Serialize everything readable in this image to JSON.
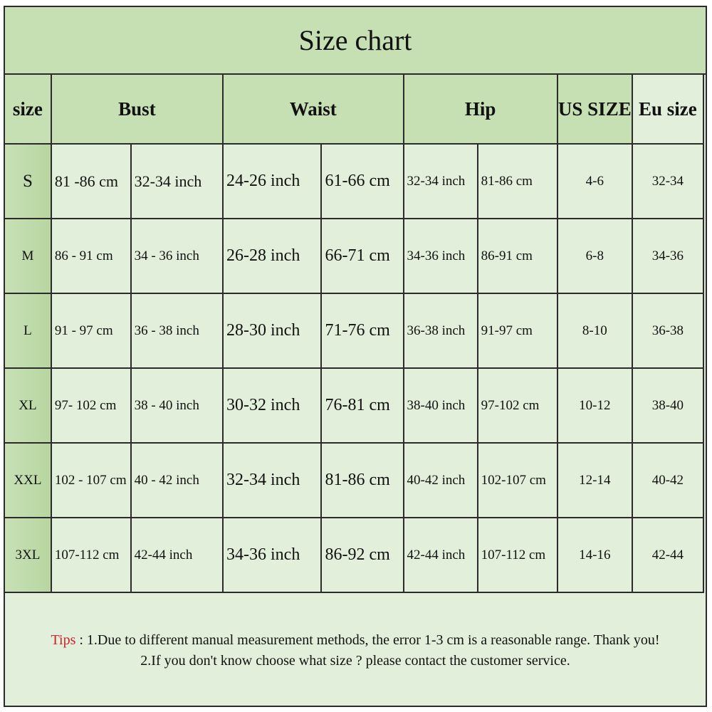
{
  "title": "Size chart",
  "headers": {
    "size": "size",
    "bust": "Bust",
    "waist": "Waist",
    "hip": "Hip",
    "us_size": "US SIZE",
    "eu_size": "Eu size"
  },
  "rows": [
    {
      "size": "S",
      "bust_cm": "81 -86 cm",
      "bust_in": "32-34 inch",
      "waist_in": "24-26 inch",
      "waist_cm": "61-66 cm",
      "hip_in": "32-34 inch",
      "hip_cm": "81-86 cm",
      "us": "4-6",
      "eu": "32-34"
    },
    {
      "size": "M",
      "bust_cm": "86 - 91 cm",
      "bust_in": "34 - 36 inch",
      "waist_in": "26-28 inch",
      "waist_cm": "66-71 cm",
      "hip_in": "34-36 inch",
      "hip_cm": "86-91 cm",
      "us": "6-8",
      "eu": "34-36"
    },
    {
      "size": "L",
      "bust_cm": "91 - 97 cm",
      "bust_in": "36 - 38 inch",
      "waist_in": "28-30 inch",
      "waist_cm": "71-76 cm",
      "hip_in": "36-38 inch",
      "hip_cm": "91-97 cm",
      "us": "8-10",
      "eu": "36-38"
    },
    {
      "size": "XL",
      "bust_cm": "97- 102 cm",
      "bust_in": "38 - 40 inch",
      "waist_in": "30-32 inch",
      "waist_cm": "76-81 cm",
      "hip_in": "38-40 inch",
      "hip_cm": "97-102 cm",
      "us": "10-12",
      "eu": "38-40"
    },
    {
      "size": "XXL",
      "bust_cm": "102 - 107 cm",
      "bust_in": "40 - 42 inch",
      "waist_in": "32-34 inch",
      "waist_cm": "81-86 cm",
      "hip_in": "40-42 inch",
      "hip_cm": "102-107 cm",
      "us": "12-14",
      "eu": "40-42"
    },
    {
      "size": "3XL",
      "bust_cm": "107-112 cm",
      "bust_in": "42-44 inch",
      "waist_in": "34-36 inch",
      "waist_cm": "86-92 cm",
      "hip_in": "42-44 inch",
      "hip_cm": "107-112 cm",
      "us": "14-16",
      "eu": "42-44"
    }
  ],
  "tips": {
    "label": "Tips",
    "line1": " : 1.Due to different manual measurement methods, the error 1-3 cm is a reasonable range. Thank you!",
    "line2": "2.If you don't know choose what size ? please contact the customer service."
  },
  "colors": {
    "header": "#c6e0b4",
    "cell": "#e2efda",
    "tips_label": "#d0202a"
  }
}
